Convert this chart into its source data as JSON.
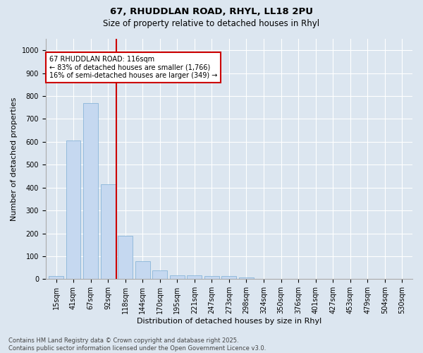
{
  "title_line1": "67, RHUDDLAN ROAD, RHYL, LL18 2PU",
  "title_line2": "Size of property relative to detached houses in Rhyl",
  "xlabel": "Distribution of detached houses by size in Rhyl",
  "ylabel": "Number of detached properties",
  "categories": [
    "15sqm",
    "41sqm",
    "67sqm",
    "92sqm",
    "118sqm",
    "144sqm",
    "170sqm",
    "195sqm",
    "221sqm",
    "247sqm",
    "273sqm",
    "298sqm",
    "324sqm",
    "350sqm",
    "376sqm",
    "401sqm",
    "427sqm",
    "453sqm",
    "479sqm",
    "504sqm",
    "530sqm"
  ],
  "values": [
    13,
    605,
    770,
    415,
    190,
    78,
    38,
    18,
    15,
    12,
    12,
    6,
    0,
    0,
    0,
    0,
    0,
    0,
    0,
    0,
    0
  ],
  "bar_color": "#c5d8f0",
  "bar_edge_color": "#7aadd4",
  "vline_color": "#cc0000",
  "vline_x_index": 4,
  "annotation_box_text": "67 RHUDDLAN ROAD: 116sqm\n← 83% of detached houses are smaller (1,766)\n16% of semi-detached houses are larger (349) →",
  "annotation_box_color": "#cc0000",
  "annotation_box_bg": "#ffffff",
  "ylim": [
    0,
    1050
  ],
  "yticks": [
    0,
    100,
    200,
    300,
    400,
    500,
    600,
    700,
    800,
    900,
    1000
  ],
  "background_color": "#dce6f0",
  "plot_bg_color": "#dce6f0",
  "footer_line1": "Contains HM Land Registry data © Crown copyright and database right 2025.",
  "footer_line2": "Contains public sector information licensed under the Open Government Licence v3.0.",
  "title_fontsize": 9.5,
  "subtitle_fontsize": 8.5,
  "axis_label_fontsize": 8,
  "tick_fontsize": 7,
  "annotation_fontsize": 7,
  "footer_fontsize": 6
}
